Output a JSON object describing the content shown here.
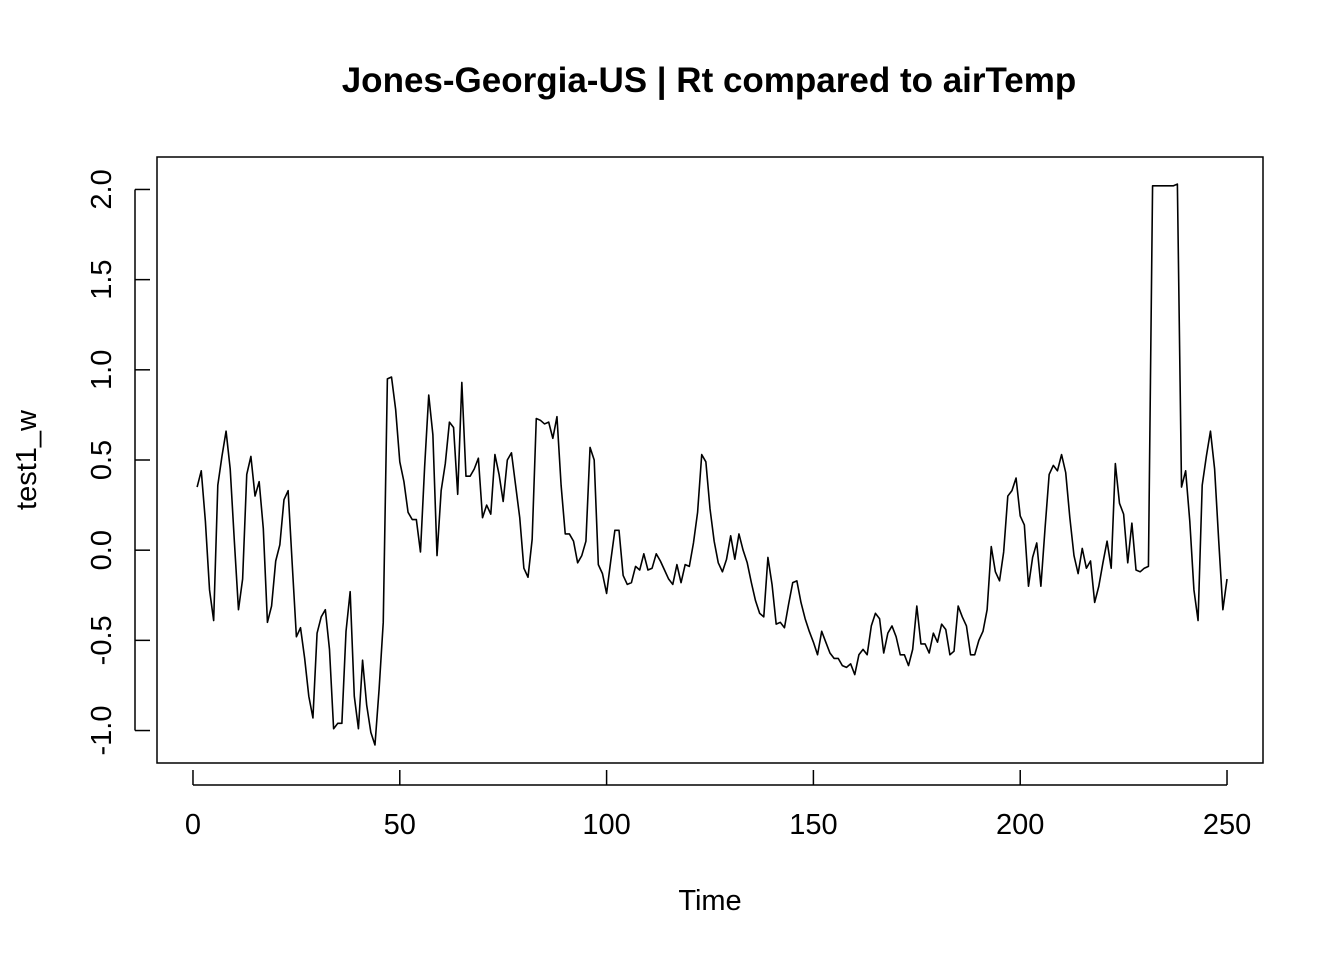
{
  "chart_data": {
    "type": "line",
    "title": "Jones-Georgia-US | Rt compared to airTemp",
    "xlabel": "Time",
    "ylabel": "test1_w",
    "xlim": [
      -8.7,
      258.7
    ],
    "ylim": [
      -1.18,
      2.18
    ],
    "x_ticks": [
      0,
      50,
      100,
      150,
      200,
      250
    ],
    "y_ticks": [
      -1.0,
      -0.5,
      0.0,
      0.5,
      1.0,
      1.5,
      2.0
    ],
    "x_tick_labels": [
      "0",
      "50",
      "100",
      "150",
      "200",
      "250"
    ],
    "y_tick_labels": [
      "-1.0",
      "-0.5",
      "0.0",
      "0.5",
      "1.0",
      "1.5",
      "2.0"
    ],
    "grid": false,
    "legend": "none",
    "line_color": "#000000",
    "series": [
      {
        "x_start": 1,
        "x_step": 1,
        "values": [
          0.35,
          0.44,
          0.16,
          -0.22,
          -0.39,
          0.36,
          0.52,
          0.66,
          0.45,
          0.05,
          -0.33,
          -0.16,
          0.42,
          0.52,
          0.3,
          0.38,
          0.12,
          -0.4,
          -0.31,
          -0.06,
          0.03,
          0.28,
          0.33,
          -0.08,
          -0.48,
          -0.43,
          -0.6,
          -0.81,
          -0.93,
          -0.46,
          -0.37,
          -0.33,
          -0.55,
          -0.99,
          -0.96,
          -0.96,
          -0.45,
          -0.23,
          -0.81,
          -0.99,
          -0.61,
          -0.86,
          -1.01,
          -1.08,
          -0.77,
          -0.4,
          0.95,
          0.96,
          0.78,
          0.49,
          0.38,
          0.21,
          0.17,
          0.17,
          -0.01,
          0.46,
          0.86,
          0.64,
          -0.03,
          0.33,
          0.48,
          0.71,
          0.68,
          0.31,
          0.93,
          0.41,
          0.41,
          0.45,
          0.51,
          0.18,
          0.25,
          0.2,
          0.53,
          0.42,
          0.27,
          0.5,
          0.54,
          0.36,
          0.18,
          -0.1,
          -0.15,
          0.06,
          0.73,
          0.72,
          0.7,
          0.71,
          0.62,
          0.74,
          0.36,
          0.09,
          0.09,
          0.05,
          -0.07,
          -0.03,
          0.05,
          0.57,
          0.5,
          -0.08,
          -0.13,
          -0.24,
          -0.06,
          0.11,
          0.11,
          -0.14,
          -0.19,
          -0.18,
          -0.09,
          -0.11,
          -0.02,
          -0.11,
          -0.1,
          -0.02,
          -0.06,
          -0.11,
          -0.16,
          -0.19,
          -0.08,
          -0.18,
          -0.08,
          -0.09,
          0.04,
          0.21,
          0.53,
          0.49,
          0.23,
          0.05,
          -0.07,
          -0.12,
          -0.05,
          0.08,
          -0.05,
          0.09,
          0.0,
          -0.07,
          -0.18,
          -0.28,
          -0.35,
          -0.37,
          -0.04,
          -0.19,
          -0.41,
          -0.4,
          -0.43,
          -0.3,
          -0.18,
          -0.17,
          -0.29,
          -0.38,
          -0.45,
          -0.51,
          -0.58,
          -0.45,
          -0.51,
          -0.57,
          -0.6,
          -0.6,
          -0.64,
          -0.65,
          -0.63,
          -0.69,
          -0.58,
          -0.55,
          -0.58,
          -0.42,
          -0.35,
          -0.38,
          -0.57,
          -0.46,
          -0.42,
          -0.48,
          -0.58,
          -0.58,
          -0.64,
          -0.55,
          -0.31,
          -0.52,
          -0.52,
          -0.57,
          -0.46,
          -0.51,
          -0.41,
          -0.44,
          -0.58,
          -0.56,
          -0.31,
          -0.37,
          -0.42,
          -0.58,
          -0.58,
          -0.5,
          -0.45,
          -0.33,
          0.02,
          -0.12,
          -0.17,
          -0.01,
          0.3,
          0.33,
          0.4,
          0.19,
          0.14,
          -0.2,
          -0.04,
          0.04,
          -0.2,
          0.12,
          0.42,
          0.47,
          0.44,
          0.53,
          0.43,
          0.18,
          -0.03,
          -0.13,
          0.01,
          -0.1,
          -0.06,
          -0.29,
          -0.2,
          -0.07,
          0.05,
          -0.1,
          0.48,
          0.26,
          0.2,
          -0.07,
          0.15,
          -0.11,
          -0.12,
          -0.1,
          -0.09,
          2.02,
          2.02,
          2.02,
          2.02,
          2.02,
          2.02,
          2.03,
          0.35,
          0.44,
          0.16,
          -0.22,
          -0.39,
          0.36,
          0.52,
          0.66,
          0.45,
          0.05,
          -0.33,
          -0.16
        ]
      }
    ]
  }
}
